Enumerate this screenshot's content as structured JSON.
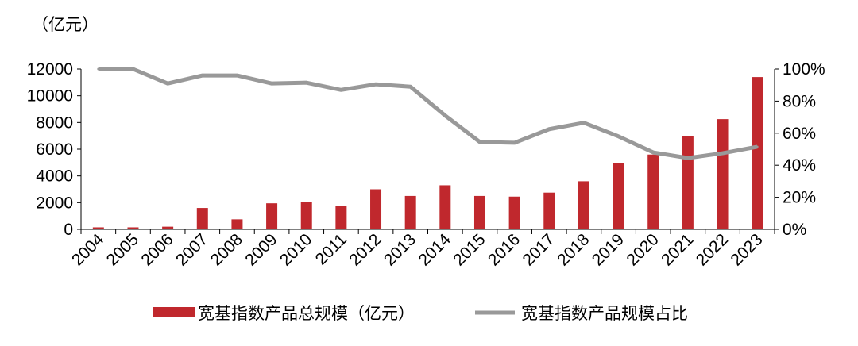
{
  "chart_data": {
    "type": "bar",
    "unit_label": "（亿元）",
    "categories": [
      "2004",
      "2005",
      "2006",
      "2007",
      "2008",
      "2009",
      "2010",
      "2011",
      "2012",
      "2013",
      "2014",
      "2015",
      "2016",
      "2017",
      "2018",
      "2019",
      "2020",
      "2021",
      "2022",
      "2023"
    ],
    "series": [
      {
        "name": "宽基指数产品总规模（亿元）",
        "type": "bar",
        "axis": "left",
        "color": "#c0282d",
        "values": [
          150,
          150,
          200,
          1600,
          750,
          1950,
          2050,
          1750,
          3000,
          2500,
          3300,
          2500,
          2450,
          2750,
          3600,
          4950,
          5600,
          7000,
          8250,
          11400
        ]
      },
      {
        "name": "宽基指数产品规模占比",
        "type": "line",
        "axis": "right",
        "color": "#999999",
        "values": [
          100,
          100,
          91,
          96,
          96,
          91,
          91.5,
          87,
          90.5,
          89,
          71,
          54.5,
          54,
          62.5,
          66.5,
          58,
          48,
          44.5,
          47.5,
          51.5
        ]
      }
    ],
    "y_left": {
      "min": 0,
      "max": 12000,
      "ticks": [
        "0",
        "2000",
        "4000",
        "6000",
        "8000",
        "10000",
        "12000"
      ]
    },
    "y_right": {
      "min": 0,
      "max": 100,
      "ticks": [
        "0%",
        "20%",
        "40%",
        "60%",
        "80%",
        "100%"
      ]
    },
    "legend_position": "bottom",
    "grid": false
  }
}
